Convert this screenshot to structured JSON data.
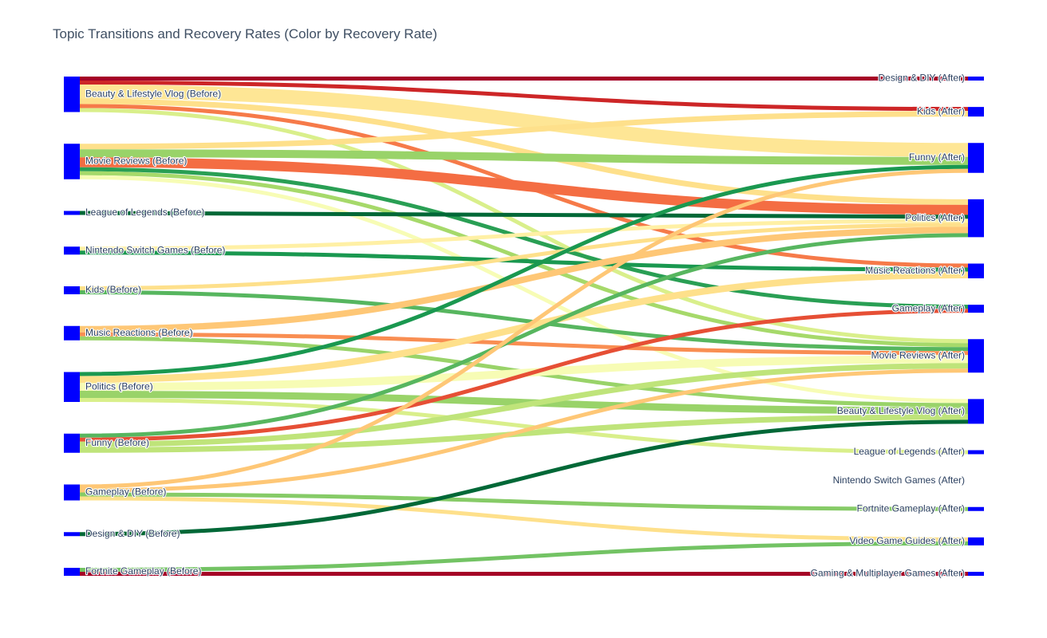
{
  "chart_data": {
    "type": "sankey",
    "title": "Topic Transitions and Recovery Rates (Color by Recovery Rate)",
    "colorscale": "RdYlGn",
    "node_color": "#0000ff",
    "sources": [
      {
        "id": "s_beauty",
        "label": "Beauty & Lifestyle Vlog (Before)"
      },
      {
        "id": "s_movie",
        "label": "Movie Reviews (Before)"
      },
      {
        "id": "s_lol",
        "label": "League of Legends (Before)"
      },
      {
        "id": "s_switch",
        "label": "Nintendo Switch Games  (Before)"
      },
      {
        "id": "s_kids",
        "label": "Kids (Before)"
      },
      {
        "id": "s_music",
        "label": "Music Reactions (Before)"
      },
      {
        "id": "s_politics",
        "label": "Politics (Before)"
      },
      {
        "id": "s_funny",
        "label": "Funny (Before)"
      },
      {
        "id": "s_gameplay",
        "label": "Gameplay (Before)"
      },
      {
        "id": "s_diy",
        "label": "Design & DIY (Before)"
      },
      {
        "id": "s_fortnite",
        "label": "Fortnite Gameplay (Before)"
      }
    ],
    "targets": [
      {
        "id": "t_diy",
        "label": "Design & DIY (After)"
      },
      {
        "id": "t_kids",
        "label": "Kids (After)"
      },
      {
        "id": "t_funny",
        "label": "Funny (After)"
      },
      {
        "id": "t_politics",
        "label": "Politics (After)"
      },
      {
        "id": "t_music",
        "label": "Music Reactions (After)"
      },
      {
        "id": "t_gameplay",
        "label": "Gameplay (After)"
      },
      {
        "id": "t_movie",
        "label": "Movie Reviews (After)"
      },
      {
        "id": "t_beauty",
        "label": "Beauty & Lifestyle Vlog (After)"
      },
      {
        "id": "t_lol",
        "label": "League of Legends (After)"
      },
      {
        "id": "t_switch",
        "label": "Nintendo Switch Games  (After)"
      },
      {
        "id": "t_fortnite",
        "label": "Fortnite Gameplay (After)"
      },
      {
        "id": "t_vgg",
        "label": "Video Game Guides (After)"
      },
      {
        "id": "t_gaming",
        "label": "Gaming & Multiplayer Games (After)"
      }
    ],
    "links": [
      {
        "source": "s_beauty",
        "target": "t_diy",
        "value": 1,
        "recovery_rate": 0.0
      },
      {
        "source": "s_beauty",
        "target": "t_kids",
        "value": 1,
        "recovery_rate": 0.08
      },
      {
        "source": "s_beauty",
        "target": "t_funny",
        "value": 3.5,
        "recovery_rate": 0.42
      },
      {
        "source": "s_beauty",
        "target": "t_politics",
        "value": 1.4,
        "recovery_rate": 0.4
      },
      {
        "source": "s_beauty",
        "target": "t_music",
        "value": 1,
        "recovery_rate": 0.22
      },
      {
        "source": "s_beauty",
        "target": "t_movie",
        "value": 1,
        "recovery_rate": 0.6
      },
      {
        "source": "s_movie",
        "target": "t_kids",
        "value": 1.4,
        "recovery_rate": 0.4
      },
      {
        "source": "s_movie",
        "target": "t_funny",
        "value": 2,
        "recovery_rate": 0.72
      },
      {
        "source": "s_movie",
        "target": "t_politics",
        "value": 2.5,
        "recovery_rate": 0.2
      },
      {
        "source": "s_movie",
        "target": "t_gameplay",
        "value": 1,
        "recovery_rate": 0.88
      },
      {
        "source": "s_movie",
        "target": "t_movie",
        "value": 1,
        "recovery_rate": 0.7
      },
      {
        "source": "s_movie",
        "target": "t_beauty",
        "value": 1,
        "recovery_rate": 0.52
      },
      {
        "source": "s_lol",
        "target": "t_politics",
        "value": 1,
        "recovery_rate": 1.0
      },
      {
        "source": "s_switch",
        "target": "t_politics",
        "value": 1,
        "recovery_rate": 0.45
      },
      {
        "source": "s_switch",
        "target": "t_music",
        "value": 1,
        "recovery_rate": 0.9
      },
      {
        "source": "s_kids",
        "target": "t_politics",
        "value": 1,
        "recovery_rate": 0.4
      },
      {
        "source": "s_kids",
        "target": "t_movie",
        "value": 1,
        "recovery_rate": 0.82
      },
      {
        "source": "s_music",
        "target": "t_politics",
        "value": 1.6,
        "recovery_rate": 0.35
      },
      {
        "source": "s_music",
        "target": "t_movie",
        "value": 1,
        "recovery_rate": 0.25
      },
      {
        "source": "s_music",
        "target": "t_beauty",
        "value": 1,
        "recovery_rate": 0.72
      },
      {
        "source": "s_politics",
        "target": "t_funny",
        "value": 1,
        "recovery_rate": 0.9
      },
      {
        "source": "s_politics",
        "target": "t_music",
        "value": 1.7,
        "recovery_rate": 0.4
      },
      {
        "source": "s_politics",
        "target": "t_movie",
        "value": 2,
        "recovery_rate": 0.52
      },
      {
        "source": "s_politics",
        "target": "t_beauty",
        "value": 1.8,
        "recovery_rate": 0.72
      },
      {
        "source": "s_politics",
        "target": "t_lol",
        "value": 1,
        "recovery_rate": 0.6
      },
      {
        "source": "s_funny",
        "target": "t_politics",
        "value": 1,
        "recovery_rate": 0.82
      },
      {
        "source": "s_funny",
        "target": "t_gameplay",
        "value": 1,
        "recovery_rate": 0.15
      },
      {
        "source": "s_funny",
        "target": "t_movie",
        "value": 1.4,
        "recovery_rate": 0.65
      },
      {
        "source": "s_funny",
        "target": "t_beauty",
        "value": 1.4,
        "recovery_rate": 0.65
      },
      {
        "source": "s_gameplay",
        "target": "t_funny",
        "value": 1,
        "recovery_rate": 0.35
      },
      {
        "source": "s_gameplay",
        "target": "t_movie",
        "value": 1,
        "recovery_rate": 0.35
      },
      {
        "source": "s_gameplay",
        "target": "t_fortnite",
        "value": 1,
        "recovery_rate": 0.75
      },
      {
        "source": "s_gameplay",
        "target": "t_vgg",
        "value": 1,
        "recovery_rate": 0.4
      },
      {
        "source": "s_diy",
        "target": "t_beauty",
        "value": 1,
        "recovery_rate": 1.0
      },
      {
        "source": "s_fortnite",
        "target": "t_vgg",
        "value": 1,
        "recovery_rate": 0.78
      },
      {
        "source": "s_fortnite",
        "target": "t_gaming",
        "value": 1,
        "recovery_rate": 0.0
      }
    ]
  }
}
